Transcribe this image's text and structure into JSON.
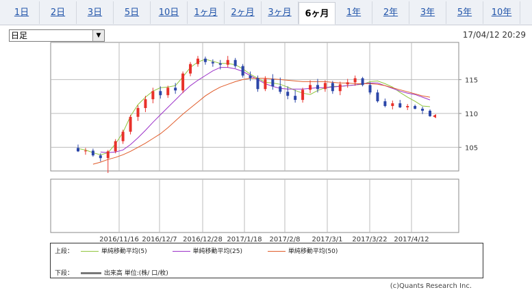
{
  "tabs": [
    {
      "label": "1日",
      "active": false
    },
    {
      "label": "2日",
      "active": false
    },
    {
      "label": "3日",
      "active": false
    },
    {
      "label": "5日",
      "active": false
    },
    {
      "label": "10日",
      "active": false
    },
    {
      "label": "1ヶ月",
      "active": false
    },
    {
      "label": "2ヶ月",
      "active": false
    },
    {
      "label": "3ヶ月",
      "active": false
    },
    {
      "label": "6ヶ月",
      "active": true
    },
    {
      "label": "1年",
      "active": false
    },
    {
      "label": "2年",
      "active": false
    },
    {
      "label": "3年",
      "active": false
    },
    {
      "label": "5年",
      "active": false
    },
    {
      "label": "10年",
      "active": false
    }
  ],
  "period_select": {
    "value": "日足"
  },
  "timestamp": "17/04/12 20:29",
  "legend": {
    "upper_label": "上段：",
    "lower_label": "下段：",
    "volume_label": "出来高 単位:(株/ 口/枚)"
  },
  "copyright": "(c)Quants Research Inc.",
  "colors": {
    "up": "#e8312a",
    "down": "#2b46a8",
    "ma5": "#90c43c",
    "ma25": "#9b30c8",
    "ma50": "#e05a28"
  },
  "chart_data": {
    "type": "candlestick",
    "title": "",
    "x_tick_labels": [
      "2016/11/16",
      "2016/12/7",
      "2016/12/28",
      "2017/1/18",
      "2017/2/8",
      "2017/3/1",
      "2017/3/22",
      "2017/4/12"
    ],
    "y_tick_labels": [
      "115",
      "110",
      "105"
    ],
    "ylim": [
      101.5,
      120.5
    ],
    "grid": true,
    "series": [
      {
        "name": "単純移動平均(5)",
        "values": [
          104.8,
          104.6,
          104.2,
          103.9,
          104.2,
          105.5,
          107.2,
          109.6,
          111.3,
          112.4,
          113.3,
          113.8,
          113.9,
          114.1,
          115.4,
          116.8,
          117.6,
          118.0,
          117.7,
          117.4,
          117.4,
          117.2,
          116.6,
          115.8,
          115.2,
          114.6,
          114.5,
          114.3,
          113.9,
          113.4,
          113.0,
          112.8,
          113.4,
          113.8,
          114.0,
          114.0,
          114.1,
          114.2,
          114.3,
          114.7,
          114.8,
          114.4,
          113.9,
          113.1,
          112.4,
          111.8,
          111.1,
          111.0
        ]
      },
      {
        "name": "単純移動平均(25)",
        "values": [
          null,
          null,
          null,
          104.3,
          104.2,
          104.3,
          104.6,
          105.4,
          106.4,
          107.5,
          108.7,
          109.8,
          110.9,
          112.0,
          113.1,
          114.1,
          114.9,
          115.6,
          116.3,
          116.8,
          116.8,
          116.6,
          116.2,
          115.6,
          115.0,
          114.4,
          114.0,
          113.7,
          113.6,
          113.6,
          113.6,
          113.7,
          113.8,
          113.8,
          113.9,
          114.0,
          114.1,
          114.2,
          114.4,
          114.5,
          114.5,
          114.1,
          113.7,
          113.3,
          113.0,
          112.8,
          112.4,
          112.0
        ]
      },
      {
        "name": "単純移動平均(50)",
        "values": [
          null,
          null,
          102.5,
          102.8,
          103.2,
          103.5,
          103.9,
          104.4,
          105.0,
          105.6,
          106.3,
          107.0,
          107.9,
          108.9,
          109.9,
          110.8,
          111.7,
          112.6,
          113.3,
          113.9,
          114.3,
          114.7,
          115.0,
          115.2,
          115.2,
          115.2,
          115.1,
          115.0,
          114.9,
          114.8,
          114.7,
          114.7,
          114.7,
          114.7,
          114.6,
          114.5,
          114.5,
          114.4,
          114.4,
          114.4,
          114.3,
          114.1,
          113.8,
          113.5,
          113.2,
          112.9,
          112.6,
          112.4
        ]
      }
    ],
    "ohlc": [
      [
        104.9,
        105.4,
        104.3,
        104.4
      ],
      [
        104.4,
        104.9,
        103.9,
        104.5
      ],
      [
        104.5,
        104.8,
        103.6,
        103.8
      ],
      [
        103.8,
        104.1,
        102.9,
        103.4
      ],
      [
        103.4,
        104.6,
        101.2,
        104.4
      ],
      [
        104.4,
        106.2,
        104.1,
        105.9
      ],
      [
        105.9,
        107.6,
        105.5,
        107.3
      ],
      [
        107.3,
        109.8,
        106.9,
        109.5
      ],
      [
        109.5,
        111.2,
        108.9,
        110.8
      ],
      [
        110.8,
        112.6,
        110.2,
        112.1
      ],
      [
        112.1,
        113.8,
        111.5,
        113.3
      ],
      [
        113.3,
        114.0,
        112.2,
        112.7
      ],
      [
        112.7,
        114.1,
        112.3,
        113.8
      ],
      [
        113.8,
        114.5,
        112.9,
        113.4
      ],
      [
        113.4,
        116.2,
        113.0,
        115.9
      ],
      [
        115.9,
        117.6,
        115.5,
        117.3
      ],
      [
        117.3,
        118.5,
        116.9,
        118.1
      ],
      [
        118.1,
        118.4,
        117.2,
        117.6
      ],
      [
        117.6,
        118.0,
        116.9,
        117.4
      ],
      [
        117.4,
        117.9,
        116.5,
        117.2
      ],
      [
        117.2,
        118.5,
        116.8,
        117.9
      ],
      [
        117.9,
        118.2,
        116.7,
        117.0
      ],
      [
        117.0,
        117.3,
        115.3,
        115.6
      ],
      [
        115.6,
        116.2,
        114.8,
        115.2
      ],
      [
        115.2,
        115.6,
        113.2,
        113.6
      ],
      [
        113.6,
        115.5,
        113.3,
        115.1
      ],
      [
        115.1,
        115.8,
        113.5,
        114.0
      ],
      [
        114.0,
        115.3,
        112.9,
        113.2
      ],
      [
        113.2,
        114.0,
        112.1,
        112.6
      ],
      [
        112.6,
        113.5,
        111.6,
        112.0
      ],
      [
        112.0,
        113.8,
        111.6,
        113.5
      ],
      [
        113.5,
        114.9,
        113.0,
        114.2
      ],
      [
        114.2,
        115.1,
        113.1,
        113.6
      ],
      [
        113.6,
        114.9,
        113.2,
        114.5
      ],
      [
        114.5,
        114.8,
        112.9,
        113.3
      ],
      [
        113.3,
        114.7,
        112.7,
        114.3
      ],
      [
        114.3,
        115.1,
        113.8,
        114.6
      ],
      [
        114.6,
        115.6,
        114.1,
        115.2
      ],
      [
        115.2,
        115.4,
        114.0,
        114.2
      ],
      [
        114.2,
        114.6,
        112.8,
        113.1
      ],
      [
        113.1,
        113.5,
        111.6,
        111.8
      ],
      [
        111.8,
        112.2,
        110.9,
        111.1
      ],
      [
        111.1,
        111.9,
        110.6,
        111.5
      ],
      [
        111.5,
        112.0,
        110.8,
        110.9
      ],
      [
        110.9,
        111.4,
        110.5,
        111.1
      ],
      [
        111.1,
        111.3,
        110.6,
        110.7
      ],
      [
        110.7,
        111.0,
        109.9,
        110.4
      ],
      [
        110.4,
        110.6,
        109.5,
        109.6
      ]
    ],
    "last_close": 109.6
  }
}
